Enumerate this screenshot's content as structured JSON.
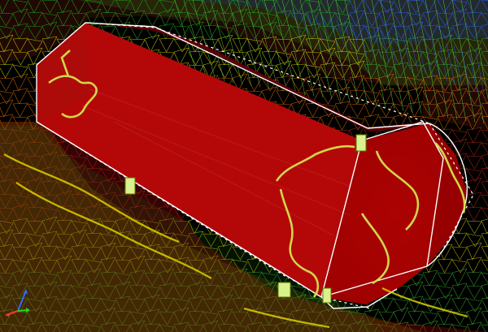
{
  "viewport": {
    "background_color": "#000000"
  },
  "mesh": {
    "ground_color_far": "#d71616",
    "ground_color_mid": "#d8d800",
    "ground_color_near": "#00c400",
    "cool_color": "#1b54ff",
    "wireframe_color": "#ffffff"
  },
  "body": {
    "name": "streamlined-body",
    "fill_color": "#b80c0c",
    "highlight_color": "#8a0000",
    "support_color": "#c8e06a"
  },
  "triad": {
    "x_color": "#ff3a2a",
    "y_color": "#22d822",
    "z_color": "#2d6bff"
  }
}
